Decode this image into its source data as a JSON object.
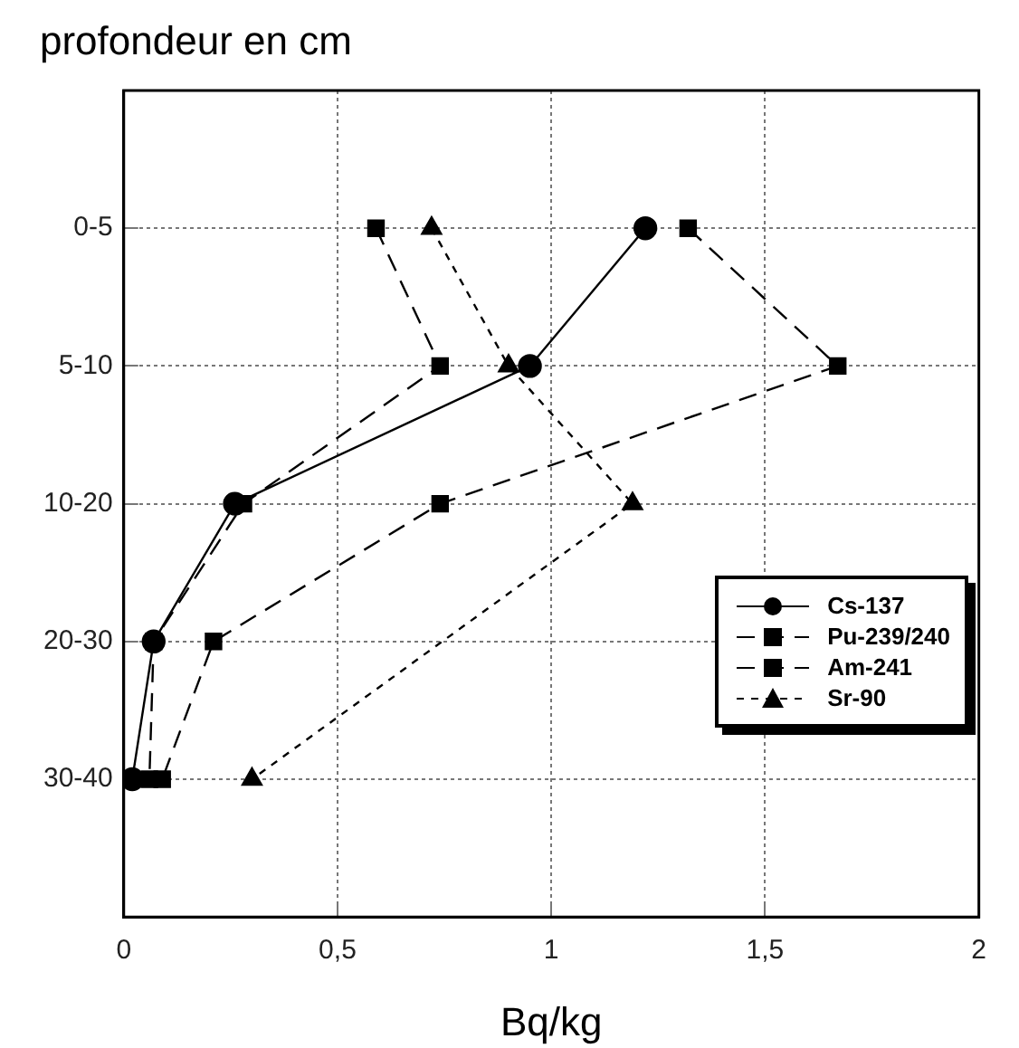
{
  "chart_data": {
    "type": "line",
    "orientation": "horizontal",
    "xlabel": "Bq/kg",
    "ylabel": "profondeur en cm",
    "categories": [
      "0-5",
      "5-10",
      "10-20",
      "20-30",
      "30-40"
    ],
    "xlim": [
      0,
      2
    ],
    "xticks": [
      0,
      {
        "value": 0.5,
        "label": "0,5"
      },
      1,
      {
        "value": 1.5,
        "label": "1,5"
      },
      2
    ],
    "grid": true,
    "legend": "bottom right",
    "series": [
      {
        "name": "Cs-137",
        "color": "#000000",
        "marker": "circle",
        "line_style": "solid",
        "values": [
          1.22,
          0.95,
          0.26,
          0.07,
          0.02
        ]
      },
      {
        "name": "Pu-239/240",
        "color": "#000000",
        "marker": "square",
        "line_style": "dashed",
        "values": [
          1.32,
          1.67,
          0.74,
          0.21,
          0.09
        ]
      },
      {
        "name": "Am-241",
        "color": "#000000",
        "marker": "square",
        "line_style": "dashed",
        "values": [
          0.59,
          0.74,
          0.28,
          0.07,
          0.06
        ]
      },
      {
        "name": "Sr-90",
        "color": "#000000",
        "marker": "triangle",
        "line_style": "dotted",
        "values": [
          0.72,
          0.9,
          1.19,
          null,
          0.3
        ]
      }
    ]
  }
}
